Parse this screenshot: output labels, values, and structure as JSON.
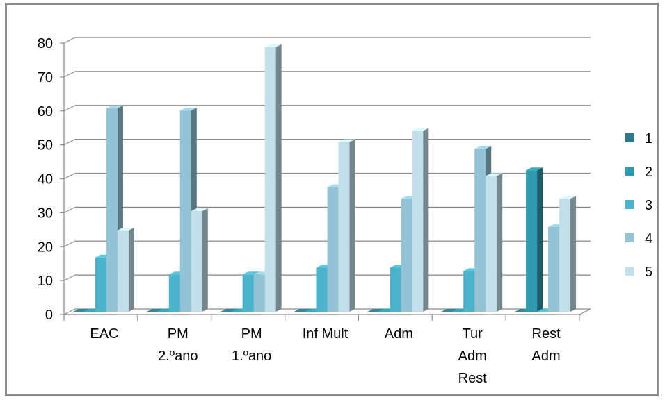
{
  "chart_data": {
    "type": "bar",
    "title": "",
    "xlabel": "",
    "ylabel": "",
    "ylim": [
      0,
      80
    ],
    "yticks": [
      0,
      10,
      20,
      30,
      40,
      50,
      60,
      70,
      80
    ],
    "grid": true,
    "legend_position": "right",
    "categories": [
      [
        "EAC"
      ],
      [
        "PM",
        "2.ºano"
      ],
      [
        "PM",
        "1.ºano"
      ],
      [
        "Inf Mult"
      ],
      [
        "Adm"
      ],
      [
        "Tur",
        "Adm",
        "Rest"
      ],
      [
        "Rest",
        "Adm"
      ]
    ],
    "series": [
      {
        "name": "1",
        "color": "#2e7a8c",
        "values": [
          0,
          0,
          0,
          0,
          0,
          0,
          0
        ]
      },
      {
        "name": "2",
        "color": "#2f9bb0",
        "values": [
          0,
          0,
          0,
          0,
          0,
          0,
          41.7
        ]
      },
      {
        "name": "3",
        "color": "#4db3cc",
        "values": [
          16,
          11,
          11,
          13,
          13,
          12,
          0
        ]
      },
      {
        "name": "4",
        "color": "#93c4d6",
        "values": [
          60,
          59.3,
          11,
          36.7,
          33.3,
          48,
          25
        ]
      },
      {
        "name": "5",
        "color": "#c3dfe9",
        "values": [
          24,
          29.7,
          78,
          50,
          53.3,
          40,
          33.3
        ]
      }
    ]
  }
}
